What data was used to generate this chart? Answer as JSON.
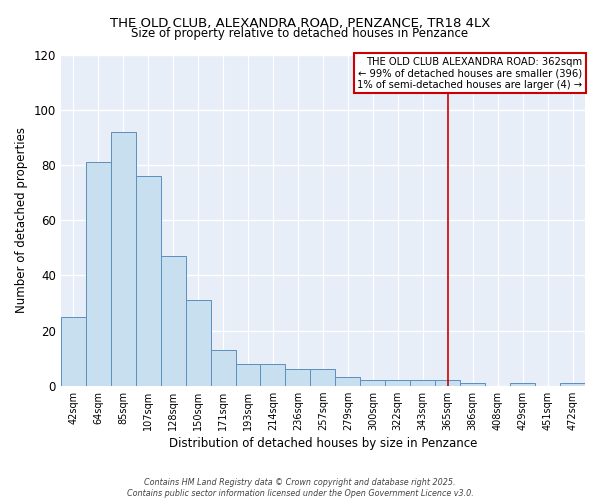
{
  "title": "THE OLD CLUB, ALEXANDRA ROAD, PENZANCE, TR18 4LX",
  "subtitle": "Size of property relative to detached houses in Penzance",
  "xlabel": "Distribution of detached houses by size in Penzance",
  "ylabel": "Number of detached properties",
  "bar_labels": [
    "42sqm",
    "64sqm",
    "85sqm",
    "107sqm",
    "128sqm",
    "150sqm",
    "171sqm",
    "193sqm",
    "214sqm",
    "236sqm",
    "257sqm",
    "279sqm",
    "300sqm",
    "322sqm",
    "343sqm",
    "365sqm",
    "386sqm",
    "408sqm",
    "429sqm",
    "451sqm",
    "472sqm"
  ],
  "bar_values": [
    25,
    81,
    92,
    76,
    47,
    31,
    13,
    8,
    8,
    6,
    6,
    3,
    2,
    2,
    2,
    2,
    1,
    0,
    1,
    0,
    1
  ],
  "bar_color": "#c8dff0",
  "bar_edge_color": "#5b8fbe",
  "vline_x": 15,
  "vline_color": "#cc0000",
  "annotation_text": "THE OLD CLUB ALEXANDRA ROAD: 362sqm\n← 99% of detached houses are smaller (396)\n1% of semi-detached houses are larger (4) →",
  "annotation_box_edge": "#cc0000",
  "ylim": [
    0,
    120
  ],
  "yticks": [
    0,
    20,
    40,
    60,
    80,
    100,
    120
  ],
  "footer1": "Contains HM Land Registry data © Crown copyright and database right 2025.",
  "footer2": "Contains public sector information licensed under the Open Government Licence v3.0.",
  "bg_color": "#ffffff",
  "plot_bg_color": "#e8eef8"
}
